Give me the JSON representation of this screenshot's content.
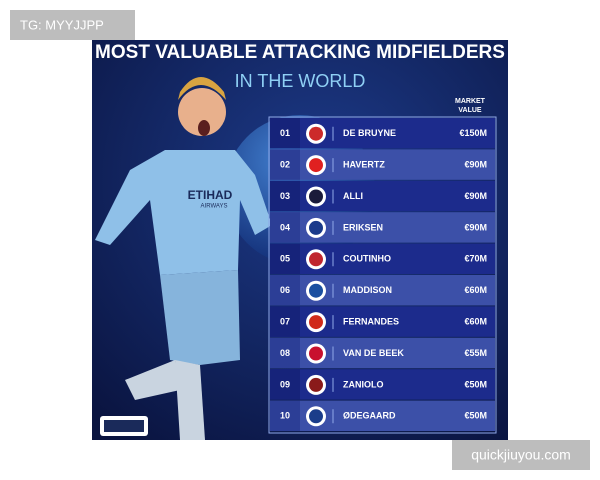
{
  "watermark_top": "TG: MYYJJPP",
  "watermark_bottom": "quickjiuyou.com",
  "header": {
    "title": "MOST VALUABLE ATTACKING MIDFIELDERS",
    "subtitle": "IN THE WORLD"
  },
  "shirt": {
    "sponsor": "ETIHAD",
    "sponsor_line2": "AIRWAYS"
  },
  "table": {
    "column_header": [
      "MARKET",
      "VALUE"
    ],
    "rows": [
      [
        "01",
        "DE BRUYNE",
        "€150M"
      ],
      [
        "02",
        "HAVERTZ",
        "€90M"
      ],
      [
        "03",
        "ALLI",
        "€90M"
      ],
      [
        "04",
        "ERIKSEN",
        "€90M"
      ],
      [
        "05",
        "COUTINHO",
        "€70M"
      ],
      [
        "06",
        "MADDISON",
        "€60M"
      ],
      [
        "07",
        "FERNANDES",
        "€60M"
      ],
      [
        "08",
        "VAN DE BEEK",
        "€55M"
      ],
      [
        "09",
        "ZANIOLO",
        "€50M"
      ],
      [
        "10",
        "ØDEGAARD",
        "€50M"
      ]
    ]
  }
}
